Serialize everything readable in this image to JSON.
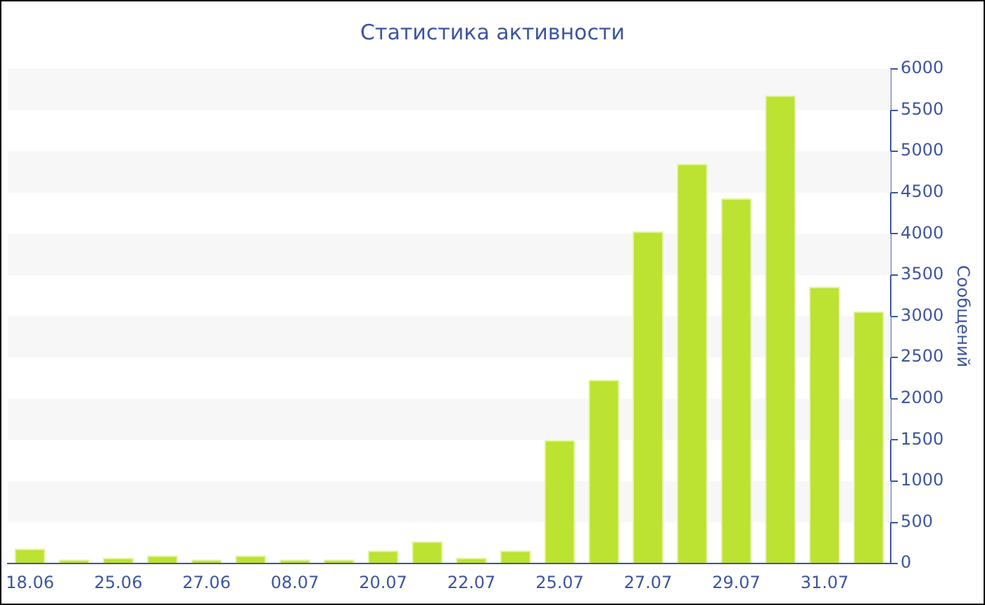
{
  "chart_data": {
    "type": "bar",
    "title": "Статистика активности",
    "ylabel": "Сообщений",
    "categories": [
      "18.06",
      null,
      "25.06",
      null,
      "27.06",
      null,
      "08.07",
      null,
      "20.07",
      null,
      "22.07",
      null,
      "25.07",
      null,
      "27.07",
      null,
      "29.07",
      null,
      "31.07",
      null
    ],
    "values": [
      180,
      50,
      70,
      100,
      50,
      100,
      50,
      50,
      160,
      270,
      70,
      160,
      1500,
      2230,
      4030,
      4850,
      4430,
      5680,
      3360,
      3060
    ],
    "color": "#bce232",
    "ylim": [
      0,
      6000
    ],
    "yticks": [
      0,
      500,
      1000,
      1500,
      2000,
      2500,
      3000,
      3500,
      4000,
      4500,
      5000,
      5500,
      6000
    ],
    "legend": false,
    "bands": [
      {
        "axis": "y",
        "from": 500,
        "to": 1000,
        "color": "#f7f7f7"
      },
      {
        "axis": "y",
        "from": 1500,
        "to": 2000,
        "color": "#f7f7f7"
      },
      {
        "axis": "y",
        "from": 2500,
        "to": 3000,
        "color": "#f7f7f7"
      },
      {
        "axis": "y",
        "from": 3500,
        "to": 4000,
        "color": "#f7f7f7"
      },
      {
        "axis": "y",
        "from": 4500,
        "to": 5000,
        "color": "#f7f7f7"
      },
      {
        "axis": "y",
        "from": 5500,
        "to": 6000,
        "color": "#f7f7f7"
      }
    ]
  }
}
